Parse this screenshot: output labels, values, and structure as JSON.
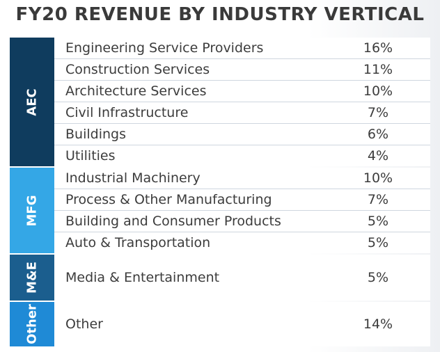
{
  "chart_data": {
    "type": "table",
    "title": "FY20 REVENUE BY INDUSTRY VERTICAL",
    "groups": [
      {
        "label": "AEC",
        "color": "#0f3c5e",
        "rows": [
          {
            "name": "Engineering Service Providers",
            "value": "16%"
          },
          {
            "name": "Construction Services",
            "value": "11%"
          },
          {
            "name": "Architecture Services",
            "value": "10%"
          },
          {
            "name": "Civil Infrastructure",
            "value": "7%"
          },
          {
            "name": "Buildings",
            "value": "6%"
          },
          {
            "name": "Utilities",
            "value": "4%"
          }
        ]
      },
      {
        "label": "MFG",
        "color": "#34a7e6",
        "rows": [
          {
            "name": "Industrial Machinery",
            "value": "10%"
          },
          {
            "name": "Process & Other Manufacturing",
            "value": "7%"
          },
          {
            "name": "Building and Consumer Products",
            "value": "5%"
          },
          {
            "name": "Auto & Transportation",
            "value": "5%"
          }
        ]
      },
      {
        "label": "M&E",
        "color": "#1b5e8e",
        "rows": [
          {
            "name": "Media & Entertainment",
            "value": "5%"
          }
        ]
      },
      {
        "label": "Other",
        "color": "#1f8ad6",
        "rows": [
          {
            "name": "Other",
            "value": "14%"
          }
        ]
      }
    ]
  }
}
